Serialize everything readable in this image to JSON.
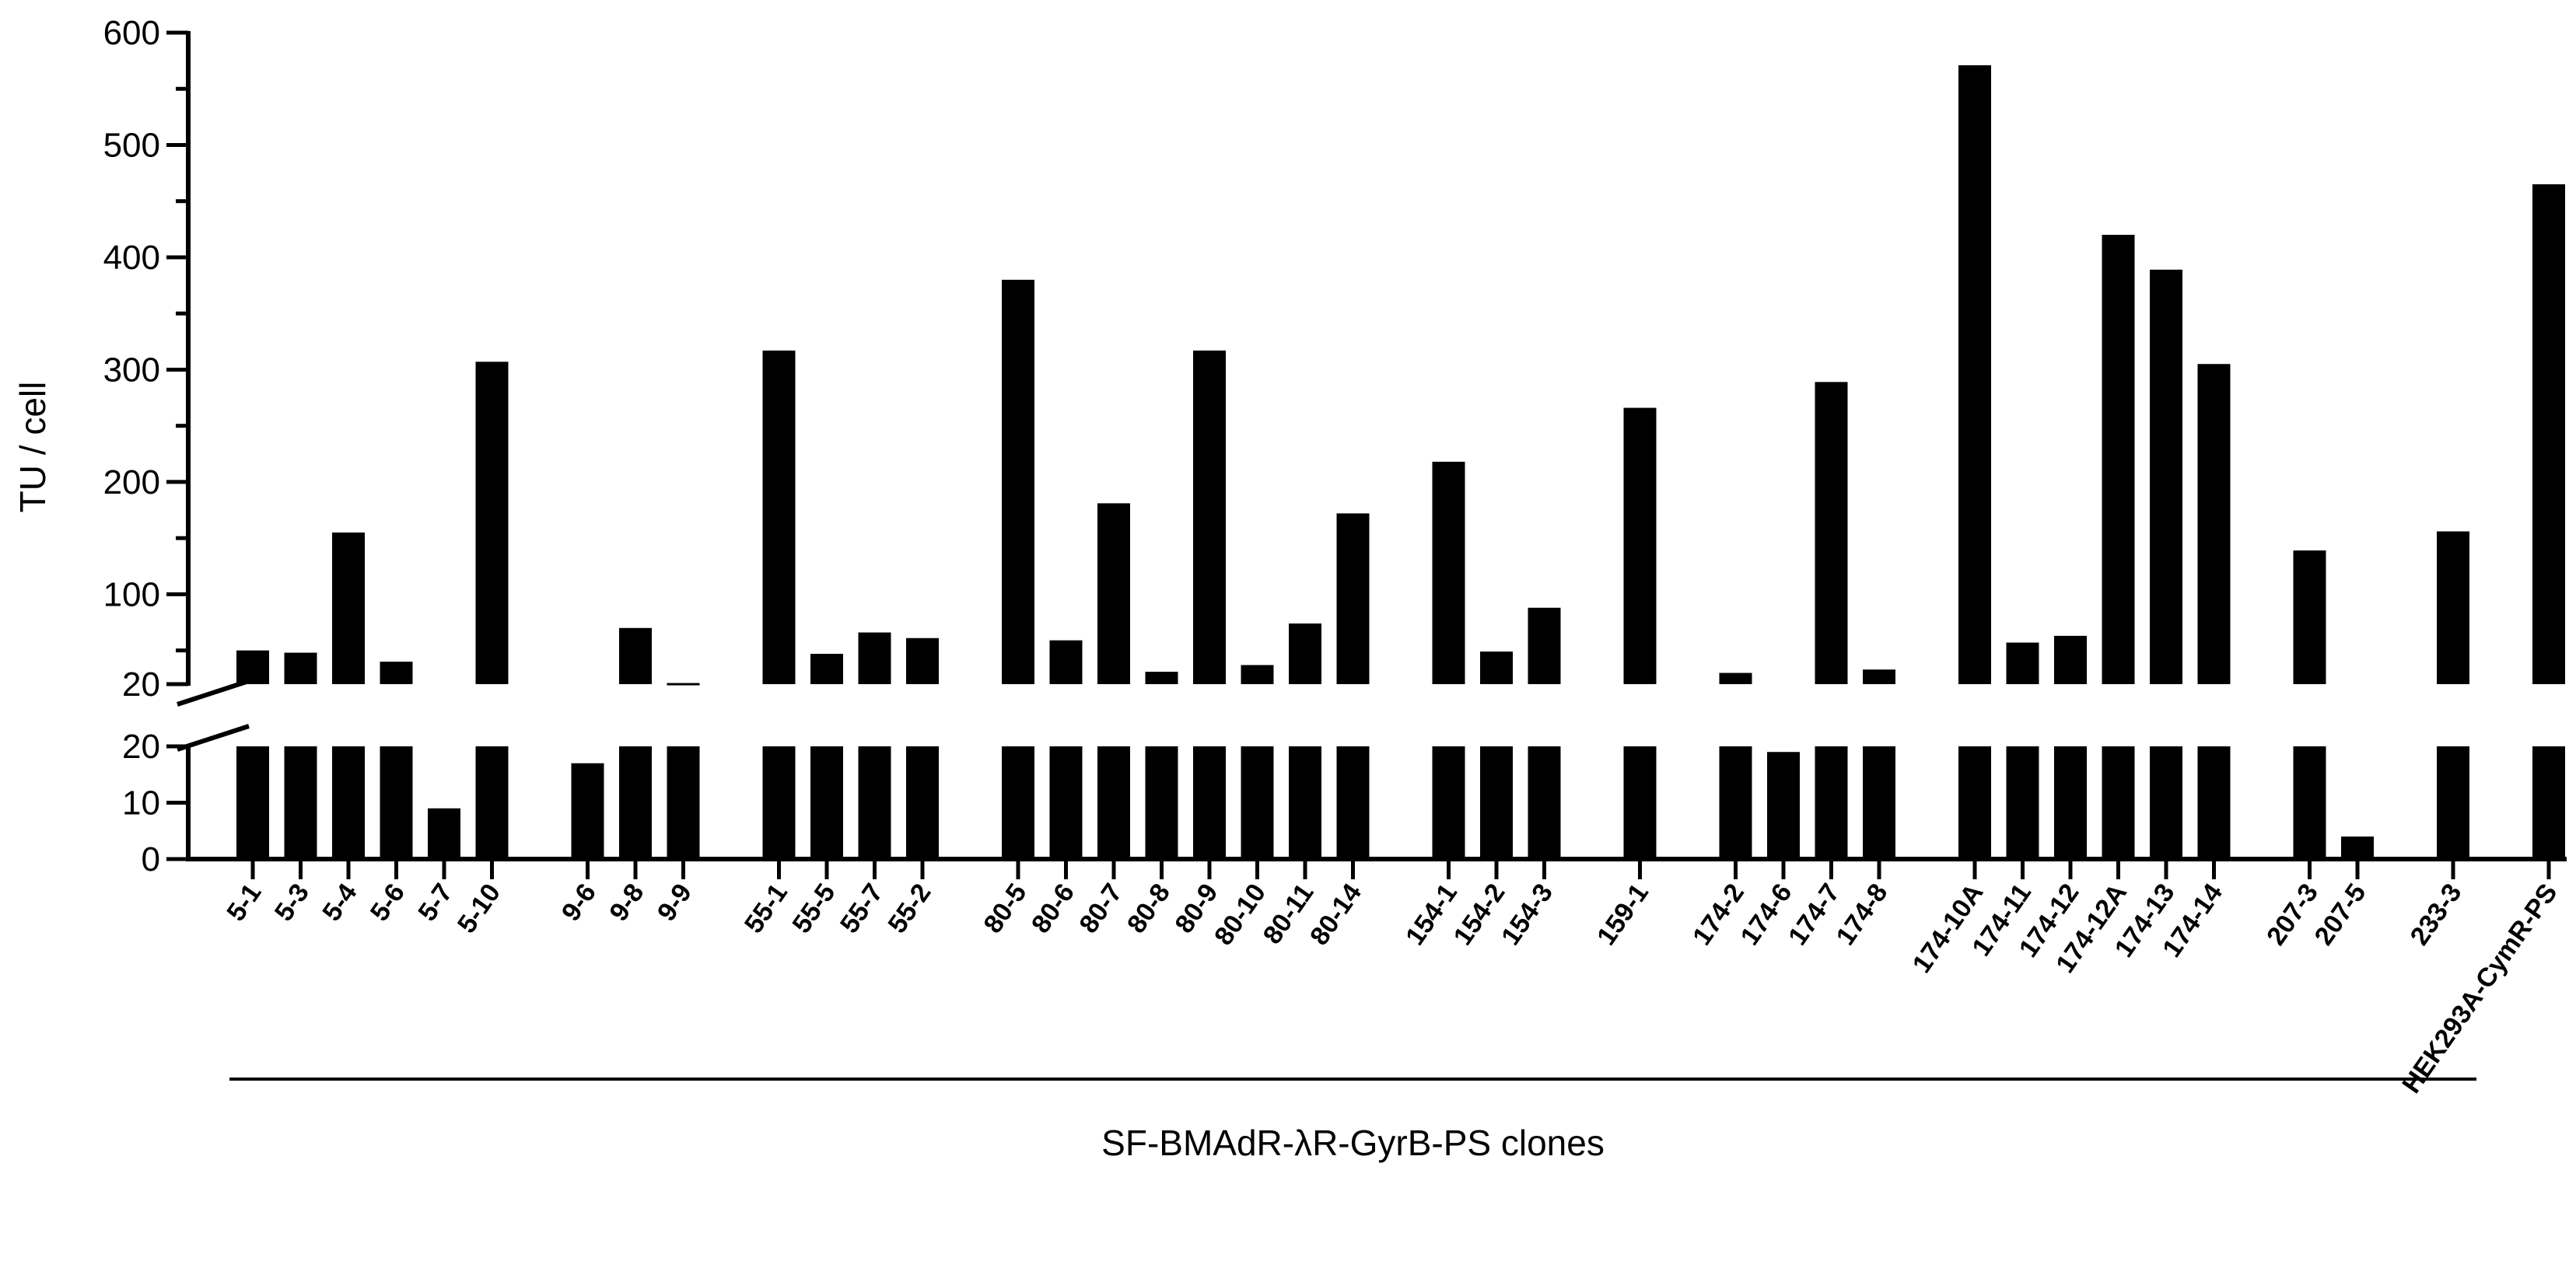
{
  "chart_data": {
    "type": "bar",
    "ylabel": "TU / cell",
    "xlabel": "SF-BMAdR-λR-GyrB-PS clones",
    "y_axis": {
      "broken": true,
      "lower_range": [
        0,
        20
      ],
      "upper_range": [
        20,
        600
      ],
      "lower_ticks": [
        "0",
        "10",
        "20"
      ],
      "upper_ticks": [
        "20",
        "100",
        "200",
        "300",
        "400",
        "500",
        "600"
      ]
    },
    "bar_color": "#000000",
    "groups": [
      {
        "bars": [
          {
            "label": "5-1",
            "value": 50
          },
          {
            "label": "5-3",
            "value": 48
          },
          {
            "label": "5-4",
            "value": 155
          },
          {
            "label": "5-6",
            "value": 40
          },
          {
            "label": "5-7",
            "value": 9
          },
          {
            "label": "5-10",
            "value": 307
          }
        ]
      },
      {
        "bars": [
          {
            "label": "9-6",
            "value": 17
          },
          {
            "label": "9-8",
            "value": 70
          },
          {
            "label": "9-9",
            "value": 21
          }
        ]
      },
      {
        "bars": [
          {
            "label": "55-1",
            "value": 317
          },
          {
            "label": "55-5",
            "value": 47
          },
          {
            "label": "55-7",
            "value": 66
          },
          {
            "label": "55-2",
            "value": 61
          }
        ]
      },
      {
        "bars": [
          {
            "label": "80-5",
            "value": 380
          },
          {
            "label": "80-6",
            "value": 59
          },
          {
            "label": "80-7",
            "value": 181
          },
          {
            "label": "80-8",
            "value": 31
          },
          {
            "label": "80-9",
            "value": 317
          },
          {
            "label": "80-10",
            "value": 37
          },
          {
            "label": "80-11",
            "value": 74
          },
          {
            "label": "80-14",
            "value": 172
          }
        ]
      },
      {
        "bars": [
          {
            "label": "154-1",
            "value": 218
          },
          {
            "label": "154-2",
            "value": 49
          },
          {
            "label": "154-3",
            "value": 88
          }
        ]
      },
      {
        "bars": [
          {
            "label": "159-1",
            "value": 266
          }
        ]
      },
      {
        "bars": [
          {
            "label": "174-2",
            "value": 30
          },
          {
            "label": "174-6",
            "value": 19
          },
          {
            "label": "174-7",
            "value": 289
          },
          {
            "label": "174-8",
            "value": 33
          }
        ]
      },
      {
        "bars": [
          {
            "label": "174-10A",
            "value": 571
          },
          {
            "label": "174-11",
            "value": 57
          },
          {
            "label": "174-12",
            "value": 63
          },
          {
            "label": "174-12A",
            "value": 420
          },
          {
            "label": "174-13",
            "value": 389
          },
          {
            "label": "174-14",
            "value": 305
          }
        ]
      },
      {
        "bars": [
          {
            "label": "207-3",
            "value": 139
          },
          {
            "label": "207-5",
            "value": 4
          }
        ]
      },
      {
        "bars": [
          {
            "label": "233-3",
            "value": 156
          }
        ]
      },
      {
        "bars": [
          {
            "label": "HEK293A-CymR-PS",
            "value": 465
          }
        ]
      }
    ],
    "bracket_label": "SF-BMAdR-λR-GyrB-PS clones",
    "grid": false,
    "legend": "none"
  }
}
